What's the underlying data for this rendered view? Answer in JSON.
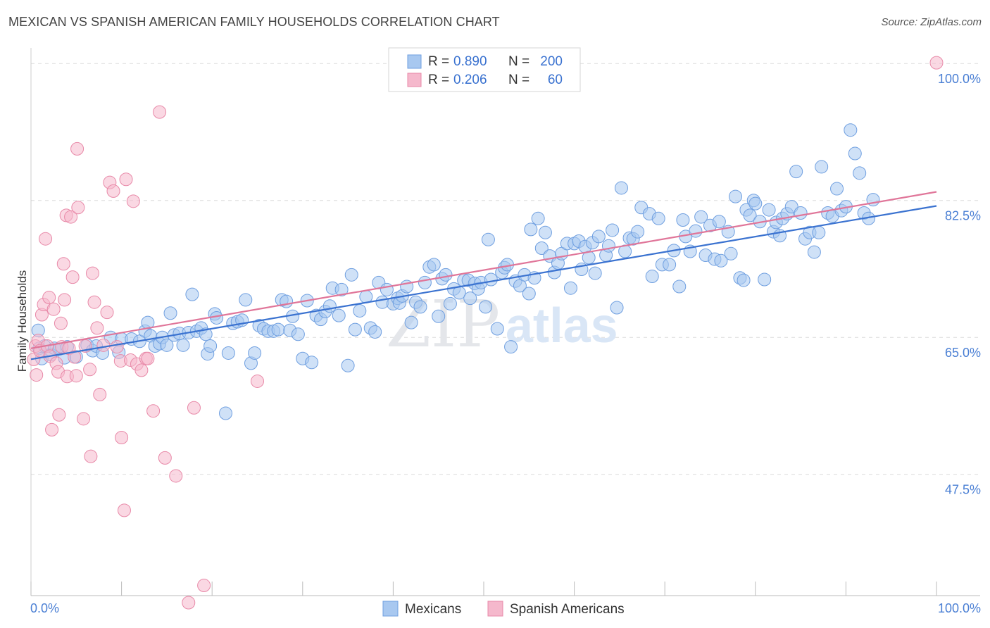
{
  "title": "MEXICAN VS SPANISH AMERICAN FAMILY HOUSEHOLDS CORRELATION CHART",
  "source": "Source: ZipAtlas.com",
  "watermark": {
    "zip": "ZIP",
    "atlas": "atlas"
  },
  "legend": {
    "rows": [
      {
        "r_label": "R = ",
        "r_value": "0.890",
        "n_label": "N = ",
        "n_value": "200",
        "color": "#a8c8f0",
        "stroke": "#6f9fe0"
      },
      {
        "r_label": "R = ",
        "r_value": "0.206",
        "n_label": "N = ",
        "n_value": "60",
        "color": "#f5b8cc",
        "stroke": "#e889a8"
      }
    ]
  },
  "bottom_legend": [
    {
      "label": "Mexicans",
      "color": "#a8c8f0",
      "stroke": "#6f9fe0"
    },
    {
      "label": "Spanish Americans",
      "color": "#f5b8cc",
      "stroke": "#e889a8"
    }
  ],
  "chart_data": {
    "type": "scatter",
    "xlabel": "",
    "ylabel": "Family Households",
    "xlim": [
      0,
      100
    ],
    "ylim": [
      32,
      102
    ],
    "x_tick_labels": [
      "0.0%",
      "100.0%"
    ],
    "y_ticks": [
      47.5,
      65.0,
      82.5,
      100.0
    ],
    "y_tick_labels": [
      "47.5%",
      "65.0%",
      "82.5%",
      "100.0%"
    ],
    "grid": true,
    "series": [
      {
        "name": "Mexicans",
        "color": "#6f9fe0",
        "fill": "#a8c8f0",
        "trend": {
          "x": [
            0,
            100
          ],
          "y": [
            62.2,
            81.8
          ],
          "color": "#3a72d0"
        },
        "points": [
          [
            0.8,
            65.9
          ],
          [
            0.9,
            63.6
          ],
          [
            1.2,
            62.3
          ],
          [
            1.5,
            63.9
          ],
          [
            2.2,
            62.8
          ],
          [
            2.6,
            63.6
          ],
          [
            3.1,
            63.5
          ],
          [
            3.7,
            62.4
          ],
          [
            4.0,
            63.8
          ],
          [
            5.0,
            62.5
          ],
          [
            6.2,
            64.0
          ],
          [
            6.8,
            63.3
          ],
          [
            7.2,
            63.9
          ],
          [
            7.9,
            63.0
          ],
          [
            8.8,
            65.0
          ],
          [
            9.7,
            63.1
          ],
          [
            10.0,
            64.8
          ],
          [
            11.1,
            64.8
          ],
          [
            12.0,
            64.5
          ],
          [
            12.6,
            65.8
          ],
          [
            12.9,
            66.9
          ],
          [
            13.2,
            65.2
          ],
          [
            13.7,
            63.9
          ],
          [
            14.2,
            64.2
          ],
          [
            14.5,
            65.0
          ],
          [
            15.0,
            64.0
          ],
          [
            15.4,
            68.1
          ],
          [
            15.8,
            65.3
          ],
          [
            16.4,
            65.5
          ],
          [
            16.8,
            64.0
          ],
          [
            17.4,
            65.6
          ],
          [
            17.8,
            70.5
          ],
          [
            18.3,
            65.8
          ],
          [
            18.8,
            66.2
          ],
          [
            19.3,
            65.4
          ],
          [
            19.5,
            62.9
          ],
          [
            19.8,
            63.9
          ],
          [
            20.3,
            68.0
          ],
          [
            20.5,
            67.5
          ],
          [
            21.5,
            55.3
          ],
          [
            21.8,
            63.0
          ],
          [
            22.3,
            66.8
          ],
          [
            22.8,
            67.0
          ],
          [
            23.3,
            67.2
          ],
          [
            23.7,
            69.8
          ],
          [
            24.3,
            61.7
          ],
          [
            24.7,
            63.0
          ],
          [
            25.2,
            66.5
          ],
          [
            25.7,
            66.1
          ],
          [
            26.2,
            65.8
          ],
          [
            26.8,
            65.8
          ],
          [
            27.3,
            66.0
          ],
          [
            27.7,
            69.8
          ],
          [
            28.2,
            69.6
          ],
          [
            28.6,
            65.9
          ],
          [
            28.9,
            67.7
          ],
          [
            29.5,
            65.4
          ],
          [
            30.0,
            62.3
          ],
          [
            30.5,
            69.7
          ],
          [
            31.0,
            61.8
          ],
          [
            31.5,
            67.8
          ],
          [
            32.0,
            67.3
          ],
          [
            32.5,
            68.3
          ],
          [
            33.0,
            69.0
          ],
          [
            33.3,
            71.3
          ],
          [
            34.0,
            67.8
          ],
          [
            34.3,
            71.1
          ],
          [
            35.0,
            61.4
          ],
          [
            35.4,
            73.0
          ],
          [
            35.8,
            66.0
          ],
          [
            36.3,
            68.4
          ],
          [
            37.0,
            70.2
          ],
          [
            37.5,
            66.2
          ],
          [
            38.0,
            65.7
          ],
          [
            38.4,
            72.0
          ],
          [
            38.8,
            69.5
          ],
          [
            39.3,
            71.1
          ],
          [
            40.0,
            69.3
          ],
          [
            40.5,
            70.0
          ],
          [
            40.7,
            69.4
          ],
          [
            41.0,
            70.3
          ],
          [
            41.5,
            71.5
          ],
          [
            42.0,
            66.9
          ],
          [
            42.5,
            69.5
          ],
          [
            43.0,
            68.9
          ],
          [
            43.5,
            72.0
          ],
          [
            44.0,
            74.0
          ],
          [
            44.5,
            74.3
          ],
          [
            45.0,
            67.7
          ],
          [
            45.4,
            72.5
          ],
          [
            45.8,
            73.0
          ],
          [
            46.3,
            69.3
          ],
          [
            46.7,
            71.2
          ],
          [
            47.3,
            70.7
          ],
          [
            47.8,
            72.3
          ],
          [
            48.3,
            72.3
          ],
          [
            48.5,
            70.0
          ],
          [
            49.0,
            71.9
          ],
          [
            49.4,
            71.2
          ],
          [
            49.7,
            72.0
          ],
          [
            50.2,
            68.9
          ],
          [
            50.5,
            77.5
          ],
          [
            50.8,
            72.4
          ],
          [
            51.5,
            66.1
          ],
          [
            52.0,
            73.3
          ],
          [
            52.3,
            73.9
          ],
          [
            52.6,
            74.3
          ],
          [
            53.0,
            63.8
          ],
          [
            53.5,
            72.2
          ],
          [
            54.0,
            71.6
          ],
          [
            54.5,
            73.0
          ],
          [
            55.0,
            70.6
          ],
          [
            55.2,
            78.8
          ],
          [
            55.6,
            72.6
          ],
          [
            56.0,
            80.2
          ],
          [
            56.4,
            76.4
          ],
          [
            56.8,
            78.4
          ],
          [
            57.3,
            75.4
          ],
          [
            57.8,
            73.3
          ],
          [
            58.2,
            74.5
          ],
          [
            58.6,
            75.7
          ],
          [
            59.2,
            77.0
          ],
          [
            59.6,
            71.3
          ],
          [
            60.0,
            77.0
          ],
          [
            60.5,
            77.3
          ],
          [
            60.8,
            73.7
          ],
          [
            61.2,
            76.6
          ],
          [
            61.6,
            75.2
          ],
          [
            62.0,
            77.1
          ],
          [
            62.3,
            73.2
          ],
          [
            62.7,
            77.9
          ],
          [
            63.5,
            75.5
          ],
          [
            63.8,
            76.7
          ],
          [
            64.2,
            78.7
          ],
          [
            65.2,
            84.1
          ],
          [
            64.7,
            68.8
          ],
          [
            65.6,
            76.0
          ],
          [
            66.1,
            77.7
          ],
          [
            66.5,
            77.6
          ],
          [
            67.0,
            78.5
          ],
          [
            67.4,
            81.6
          ],
          [
            68.3,
            80.8
          ],
          [
            68.6,
            72.8
          ],
          [
            69.3,
            80.2
          ],
          [
            69.7,
            74.3
          ],
          [
            70.5,
            74.3
          ],
          [
            71.0,
            76.1
          ],
          [
            71.6,
            71.5
          ],
          [
            72.0,
            80.0
          ],
          [
            72.3,
            77.9
          ],
          [
            72.8,
            76.0
          ],
          [
            73.4,
            78.6
          ],
          [
            74.0,
            80.4
          ],
          [
            74.5,
            75.5
          ],
          [
            75.0,
            79.3
          ],
          [
            75.5,
            75.0
          ],
          [
            76.0,
            79.8
          ],
          [
            76.2,
            74.8
          ],
          [
            77.0,
            78.5
          ],
          [
            77.3,
            75.7
          ],
          [
            77.8,
            83.0
          ],
          [
            78.3,
            72.6
          ],
          [
            78.7,
            72.3
          ],
          [
            79.0,
            81.3
          ],
          [
            79.4,
            80.6
          ],
          [
            79.8,
            82.5
          ],
          [
            80.0,
            82.1
          ],
          [
            80.5,
            79.8
          ],
          [
            81.0,
            72.4
          ],
          [
            81.5,
            81.3
          ],
          [
            82.0,
            78.5
          ],
          [
            82.3,
            79.7
          ],
          [
            82.7,
            78.0
          ],
          [
            83.0,
            80.2
          ],
          [
            83.5,
            80.8
          ],
          [
            84.0,
            81.7
          ],
          [
            84.5,
            86.2
          ],
          [
            85.0,
            80.9
          ],
          [
            85.5,
            77.6
          ],
          [
            86.0,
            78.4
          ],
          [
            86.5,
            75.9
          ],
          [
            87.0,
            78.4
          ],
          [
            87.3,
            86.8
          ],
          [
            88.0,
            80.9
          ],
          [
            88.5,
            80.5
          ],
          [
            89.0,
            84.0
          ],
          [
            89.5,
            81.2
          ],
          [
            90.0,
            81.7
          ],
          [
            90.5,
            91.5
          ],
          [
            91.0,
            88.5
          ],
          [
            91.5,
            86.0
          ],
          [
            92.0,
            80.9
          ],
          [
            92.5,
            80.2
          ],
          [
            93.0,
            82.6
          ]
        ]
      },
      {
        "name": "Spanish Americans",
        "color": "#e889a8",
        "fill": "#f5b8cc",
        "trend": {
          "x": [
            0,
            100
          ],
          "y": [
            63.6,
            83.6
          ],
          "color": "#e07599"
        },
        "points": [
          [
            0.3,
            62.2
          ],
          [
            0.5,
            63.9
          ],
          [
            0.6,
            60.2
          ],
          [
            0.8,
            64.6
          ],
          [
            1.0,
            63.3
          ],
          [
            1.2,
            67.9
          ],
          [
            1.4,
            69.2
          ],
          [
            1.6,
            77.6
          ],
          [
            1.8,
            63.9
          ],
          [
            2.0,
            70.1
          ],
          [
            2.1,
            62.6
          ],
          [
            2.3,
            53.2
          ],
          [
            2.5,
            68.6
          ],
          [
            2.8,
            61.7
          ],
          [
            3.0,
            60.6
          ],
          [
            3.1,
            55.1
          ],
          [
            3.3,
            66.8
          ],
          [
            3.4,
            63.8
          ],
          [
            3.6,
            74.4
          ],
          [
            3.7,
            69.8
          ],
          [
            3.9,
            80.6
          ],
          [
            4.0,
            60.0
          ],
          [
            4.2,
            63.6
          ],
          [
            4.4,
            80.4
          ],
          [
            4.6,
            72.7
          ],
          [
            4.8,
            62.5
          ],
          [
            5.0,
            60.1
          ],
          [
            5.1,
            89.1
          ],
          [
            5.2,
            81.6
          ],
          [
            5.8,
            54.6
          ],
          [
            6.0,
            63.9
          ],
          [
            6.5,
            60.9
          ],
          [
            6.6,
            49.8
          ],
          [
            6.8,
            73.2
          ],
          [
            7.0,
            69.5
          ],
          [
            7.3,
            66.2
          ],
          [
            7.6,
            57.7
          ],
          [
            8.0,
            64.0
          ],
          [
            8.4,
            68.2
          ],
          [
            8.7,
            84.8
          ],
          [
            9.1,
            83.7
          ],
          [
            9.5,
            63.8
          ],
          [
            9.9,
            62.0
          ],
          [
            10.0,
            52.2
          ],
          [
            10.3,
            42.9
          ],
          [
            10.5,
            85.2
          ],
          [
            11.0,
            62.1
          ],
          [
            11.3,
            82.4
          ],
          [
            11.7,
            61.6
          ],
          [
            12.2,
            60.8
          ],
          [
            12.7,
            62.3
          ],
          [
            12.9,
            62.3
          ],
          [
            13.5,
            55.6
          ],
          [
            14.2,
            93.8
          ],
          [
            14.8,
            49.6
          ],
          [
            16.0,
            47.3
          ],
          [
            17.4,
            31.1
          ],
          [
            18.0,
            56.0
          ],
          [
            19.1,
            33.3
          ],
          [
            25.0,
            59.4
          ],
          [
            100.0,
            100.1
          ]
        ]
      }
    ]
  }
}
